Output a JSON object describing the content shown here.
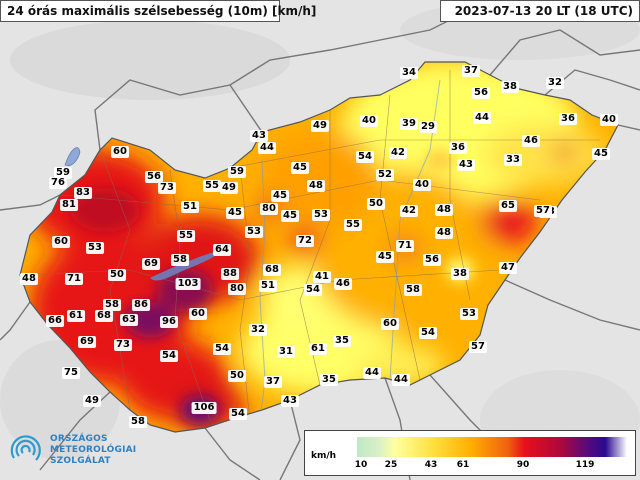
{
  "header": {
    "title": "24 órás maximális szélsebesség (10m) [km/h]",
    "time": "2023-07-13 20 LT (18 UTC)"
  },
  "logo": {
    "line1": "ORSZÁGOS",
    "line2": "METEOROLÓGIAI",
    "line3": "SZOLGÁLAT"
  },
  "legend": {
    "unit": "km/h",
    "ticks": [
      "10",
      "25",
      "43",
      "61",
      "90",
      "119"
    ],
    "colors": [
      "#bfe8c4",
      "#ffff6a",
      "#ffb000",
      "#e8101c",
      "#5a0a7a",
      "#ffffff"
    ]
  },
  "stations": [
    {
      "v": "34"
    },
    {
      "v": "37"
    },
    {
      "v": "38"
    },
    {
      "v": "32"
    },
    {
      "v": "56"
    },
    {
      "v": "36"
    },
    {
      "v": "40"
    },
    {
      "v": "43"
    },
    {
      "v": "49"
    },
    {
      "v": "40"
    },
    {
      "v": "39"
    },
    {
      "v": "29"
    },
    {
      "v": "44"
    },
    {
      "v": "46"
    },
    {
      "v": "44"
    },
    {
      "v": "36"
    },
    {
      "v": "33"
    },
    {
      "v": "45"
    },
    {
      "v": "60"
    },
    {
      "v": "54"
    },
    {
      "v": "42"
    },
    {
      "v": "43"
    },
    {
      "v": "45"
    },
    {
      "v": "59"
    },
    {
      "v": "52"
    },
    {
      "v": "59"
    },
    {
      "v": "56"
    },
    {
      "v": "73"
    },
    {
      "v": "55"
    },
    {
      "v": "49"
    },
    {
      "v": "48"
    },
    {
      "v": "45"
    },
    {
      "v": "40"
    },
    {
      "v": "76"
    },
    {
      "v": "83"
    },
    {
      "v": "51"
    },
    {
      "v": "80"
    },
    {
      "v": "45"
    },
    {
      "v": "53"
    },
    {
      "v": "50"
    },
    {
      "v": "42"
    },
    {
      "v": "48"
    },
    {
      "v": "65"
    },
    {
      "v": "57"
    },
    {
      "v": "81"
    },
    {
      "v": "45"
    },
    {
      "v": "53"
    },
    {
      "v": "55"
    },
    {
      "v": "60"
    },
    {
      "v": "55"
    },
    {
      "v": "53"
    },
    {
      "v": "72"
    },
    {
      "v": "71"
    },
    {
      "v": "48"
    },
    {
      "v": "53"
    },
    {
      "v": "64"
    },
    {
      "v": "45"
    },
    {
      "v": "56"
    },
    {
      "v": "69"
    },
    {
      "v": "58"
    },
    {
      "v": "88"
    },
    {
      "v": "68"
    },
    {
      "v": "47"
    },
    {
      "v": "48"
    },
    {
      "v": "71"
    },
    {
      "v": "50"
    },
    {
      "v": "41"
    },
    {
      "v": "38"
    },
    {
      "v": "103"
    },
    {
      "v": "80"
    },
    {
      "v": "51"
    },
    {
      "v": "54"
    },
    {
      "v": "46"
    },
    {
      "v": "58"
    },
    {
      "v": "58"
    },
    {
      "v": "86"
    },
    {
      "v": "63"
    },
    {
      "v": "66"
    },
    {
      "v": "61"
    },
    {
      "v": "68"
    },
    {
      "v": "60"
    },
    {
      "v": "53"
    },
    {
      "v": "96"
    },
    {
      "v": "32"
    },
    {
      "v": "60"
    },
    {
      "v": "54"
    },
    {
      "v": "69"
    },
    {
      "v": "73"
    },
    {
      "v": "61"
    },
    {
      "v": "35"
    },
    {
      "v": "57"
    },
    {
      "v": "54"
    },
    {
      "v": "31"
    },
    {
      "v": "54"
    },
    {
      "v": "75"
    },
    {
      "v": "50"
    },
    {
      "v": "37"
    },
    {
      "v": "35"
    },
    {
      "v": "44"
    },
    {
      "v": "44"
    },
    {
      "v": "49"
    },
    {
      "v": "43"
    },
    {
      "v": "106"
    },
    {
      "v": "54"
    },
    {
      "v": "58"
    }
  ]
}
